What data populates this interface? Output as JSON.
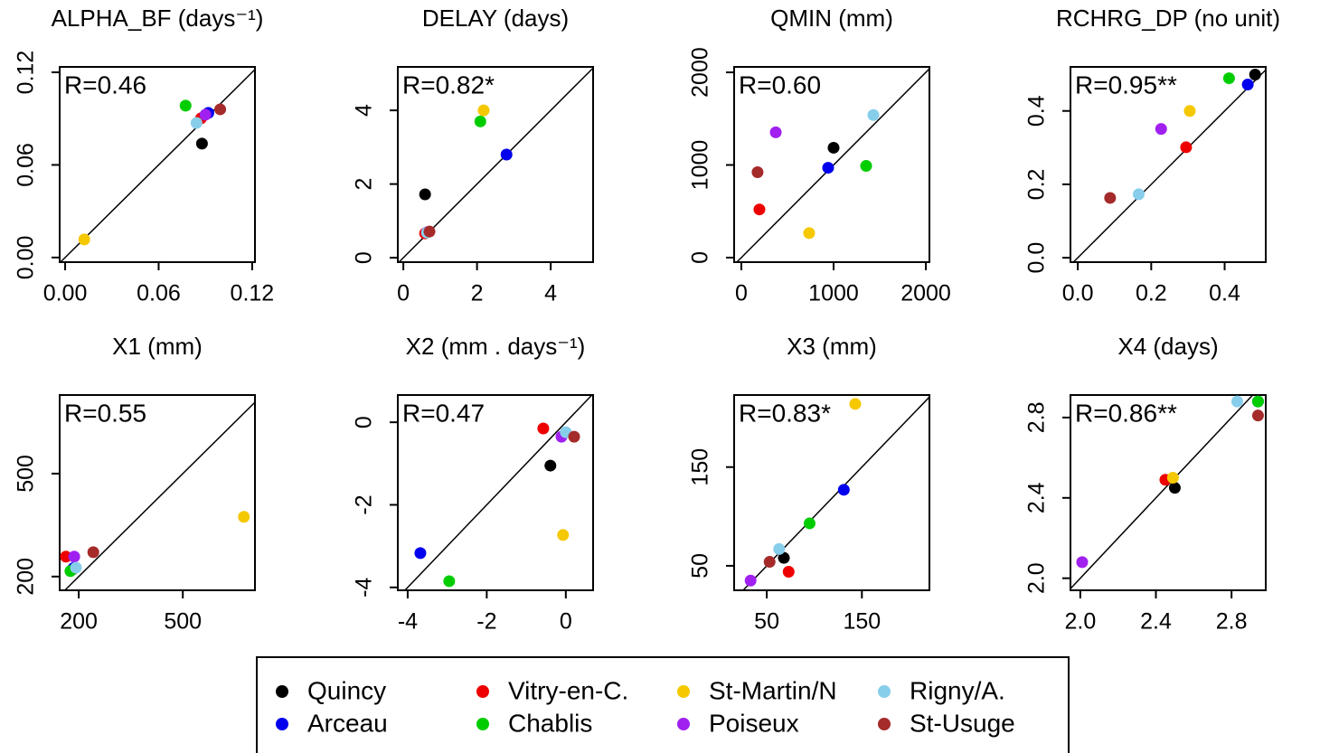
{
  "chart_data": [
    {
      "type": "scatter",
      "title": "ALPHA_BF (days⁻¹)",
      "annotation": "R=0.46",
      "x": [
        0.0878,
        0.0919,
        0.0872,
        0.0773,
        0.0123,
        0.09,
        0.0843,
        0.0995
      ],
      "values": [
        0.0738,
        0.0937,
        0.0902,
        0.0984,
        0.0117,
        0.0925,
        0.0872,
        0.096
      ],
      "xlim": [
        -0.0035,
        0.1218
      ],
      "ylim": [
        -0.003,
        0.1235
      ],
      "xticks": [
        {
          "value": 0,
          "label": "0.00"
        },
        0.06,
        0.12
      ],
      "yticks": [
        {
          "value": 0,
          "label": "0.00"
        },
        0.06,
        0.12
      ]
    },
    {
      "type": "scatter",
      "title": "DELAY (days)",
      "annotation": "R=0.82*",
      "x": [
        0.59,
        2.8,
        0.59,
        2.09,
        2.18,
        0.64,
        0.64,
        0.71
      ],
      "values": [
        1.72,
        2.8,
        0.66,
        3.7,
        4.0,
        0.69,
        0.68,
        0.71
      ],
      "xlim": [
        -0.15,
        5.15
      ],
      "ylim": [
        -0.12,
        5.18
      ],
      "xticks": [
        0,
        2,
        4
      ],
      "yticks": [
        0,
        2,
        4
      ]
    },
    {
      "type": "scatter",
      "title": "QMIN (mm)",
      "annotation": "R=0.60",
      "x": [
        1000,
        941,
        196,
        1353,
        735,
        373,
        1431,
        176
      ],
      "values": [
        1186,
        970,
        520,
        990,
        265,
        1353,
        1539,
        922
      ],
      "xlim": [
        -78,
        2039
      ],
      "ylim": [
        -49,
        2059
      ],
      "xticks": [
        0,
        1000,
        2000
      ],
      "yticks": [
        0,
        1000,
        2000
      ]
    },
    {
      "type": "scatter",
      "title": "RCHRG_DP (no unit)",
      "annotation": "R=0.95**",
      "x": [
        0.483,
        0.463,
        0.295,
        0.412,
        0.305,
        0.227,
        0.166,
        0.088
      ],
      "values": [
        0.499,
        0.472,
        0.301,
        0.489,
        0.4,
        0.351,
        0.173,
        0.163
      ],
      "xlim": [
        -0.02,
        0.512
      ],
      "ylim": [
        -0.012,
        0.52
      ],
      "xticks": [
        {
          "value": 0,
          "label": "0.0"
        },
        0.2,
        0.4
      ],
      "yticks": [
        {
          "value": 0,
          "label": "0.0"
        },
        0.2,
        0.4
      ]
    },
    {
      "type": "scatter",
      "title": "X1 (mm)",
      "annotation": "R=0.55",
      "x": [
        182,
        185,
        163,
        176,
        676,
        187,
        192,
        242
      ],
      "values": [
        221,
        225,
        258,
        216,
        374,
        258,
        226,
        271
      ],
      "xlim": [
        145,
        708
      ],
      "ylim": [
        160,
        729
      ],
      "xticks": [
        200,
        500
      ],
      "yticks": [
        200,
        500
      ]
    },
    {
      "type": "scatter",
      "title": "X2 (mm . days⁻¹)",
      "annotation": "R=0.47",
      "x": [
        -0.39,
        -3.68,
        -0.57,
        -2.95,
        -0.07,
        -0.11,
        0,
        0.21
      ],
      "values": [
        -1.05,
        -3.17,
        -0.15,
        -3.85,
        -2.73,
        -0.35,
        -0.24,
        -0.35
      ],
      "xlim": [
        -4.25,
        0.69
      ],
      "ylim": [
        -4.07,
        0.66
      ],
      "xticks": [
        -4,
        -2,
        0
      ],
      "yticks": [
        -4,
        -2,
        0
      ]
    },
    {
      "type": "scatter",
      "title": "X3 (mm)",
      "annotation": "R=0.83*",
      "x": [
        68,
        131,
        73,
        95,
        143,
        33,
        63,
        53
      ],
      "values": [
        58,
        127,
        44,
        93,
        214,
        35,
        67,
        54
      ],
      "xlim": [
        15.7,
        221
      ],
      "ylim": [
        25.2,
        223
      ],
      "xticks": [
        50,
        150
      ],
      "yticks": [
        50,
        150
      ]
    },
    {
      "type": "scatter",
      "title": "X4 (days)",
      "annotation": "R=0.86**",
      "x": [
        2.5,
        2.94,
        2.45,
        2.94,
        2.49,
        2.01,
        2.83,
        2.94
      ],
      "values": [
        2.45,
        2.88,
        2.49,
        2.88,
        2.5,
        2.08,
        2.88,
        2.81
      ],
      "xlim": [
        1.948,
        2.981
      ],
      "ylim": [
        1.94,
        2.912
      ],
      "xticks": [
        {
          "value": 2,
          "label": "2.0"
        },
        2.4,
        2.8
      ],
      "yticks": [
        {
          "value": 2,
          "label": "2.0"
        },
        2.4,
        2.8
      ]
    }
  ],
  "legend": {
    "entries": [
      {
        "name": "Quincy",
        "color": "#000000"
      },
      {
        "name": "Arceau",
        "color": "#0000ee"
      },
      {
        "name": "Vitry-en-C.",
        "color": "#ee0000"
      },
      {
        "name": "Chablis",
        "color": "#00cd00"
      },
      {
        "name": "St-Martin/N",
        "color": "#f5c800"
      },
      {
        "name": "Poiseux",
        "color": "#a020f0"
      },
      {
        "name": "Rigny/A.",
        "color": "#87ceeb"
      },
      {
        "name": "St-Usuge",
        "color": "#a52a2a"
      }
    ]
  }
}
